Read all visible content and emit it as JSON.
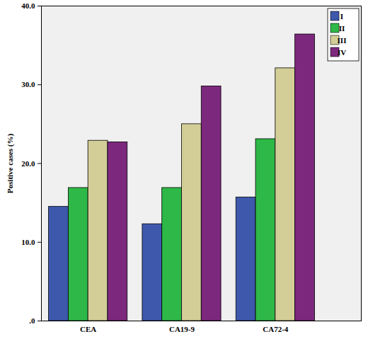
{
  "chart_data": {
    "type": "bar",
    "y_label": "Positive cases (%)",
    "categories": [
      "CEA",
      "CA19-9",
      "CA72-4"
    ],
    "series": [
      {
        "name": "I",
        "color": "#3E58AC",
        "values": [
          14.5,
          12.3,
          15.7
        ]
      },
      {
        "name": "II",
        "color": "#2EB848",
        "values": [
          16.9,
          16.9,
          23.1
        ]
      },
      {
        "name": "III",
        "color": "#D3CE97",
        "values": [
          22.9,
          25.0,
          32.1
        ]
      },
      {
        "name": "IV",
        "color": "#7C287D",
        "values": [
          22.7,
          29.8,
          36.4
        ]
      }
    ],
    "ylim": [
      0,
      40
    ],
    "yticks": [
      {
        "value": 0,
        "label": ".0"
      },
      {
        "value": 10,
        "label": "10.0"
      },
      {
        "value": 20,
        "label": "20.0"
      },
      {
        "value": 30,
        "label": "30.0"
      },
      {
        "value": 40,
        "label": "40.0"
      }
    ],
    "grid": false,
    "legend": "top-right"
  }
}
